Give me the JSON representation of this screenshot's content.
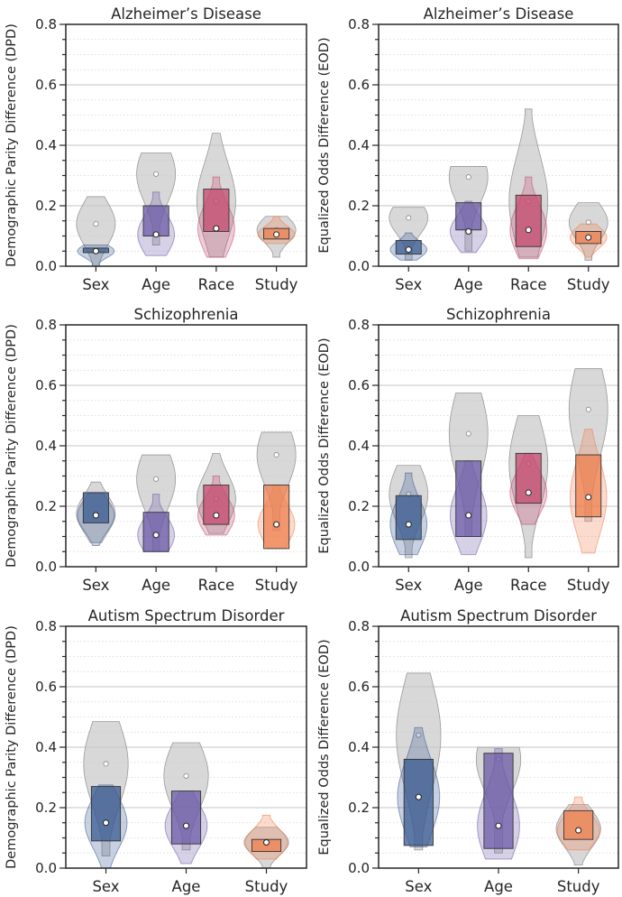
{
  "chart_data": [
    {
      "type": "violin",
      "title": "Alzheimer’s Disease",
      "ylabel": "Demographic Parity Difference (DPD)",
      "ylim": [
        0,
        0.8
      ],
      "yticks": [
        "0.0",
        "0.2",
        "0.4",
        "0.6",
        "0.8"
      ],
      "grid": "horizontal",
      "categories": [
        "Sex",
        "Age",
        "Race",
        "Study"
      ],
      "groups": [
        {
          "name": "Sex",
          "color": "#3b5b92",
          "light": [
            0.0,
            0.23
          ],
          "light_median": 0.14,
          "dark": [
            0.0,
            0.07
          ],
          "iqr": [
            0.045,
            0.06
          ],
          "median": 0.05
        },
        {
          "name": "Age",
          "color": "#6c5ba7",
          "light": [
            0.07,
            0.375
          ],
          "light_median": 0.305,
          "dark": [
            0.035,
            0.245
          ],
          "iqr": [
            0.1,
            0.2
          ],
          "median": 0.105
        },
        {
          "name": "Race",
          "color": "#c5496f",
          "light": [
            0.03,
            0.44
          ],
          "light_median": 0.215,
          "dark": [
            0.03,
            0.295
          ],
          "iqr": [
            0.115,
            0.255
          ],
          "median": 0.125
        },
        {
          "name": "Study",
          "color": "#ef7f4e",
          "light": [
            0.03,
            0.165
          ],
          "light_median": 0.12,
          "dark": [
            0.075,
            0.165
          ],
          "iqr": [
            0.09,
            0.125
          ],
          "median": 0.105
        }
      ]
    },
    {
      "type": "violin",
      "title": "Alzheimer’s Disease",
      "ylabel": "Equalized Odds Difference (EOD)",
      "ylim": [
        0,
        0.8
      ],
      "yticks": [
        "0.0",
        "0.2",
        "0.4",
        "0.6",
        "0.8"
      ],
      "grid": "horizontal",
      "categories": [
        "Sex",
        "Age",
        "Race",
        "Study"
      ],
      "groups": [
        {
          "name": "Sex",
          "color": "#3b5b92",
          "light": [
            0.02,
            0.195
          ],
          "light_median": 0.16,
          "dark": [
            0.02,
            0.11
          ],
          "iqr": [
            0.04,
            0.085
          ],
          "median": 0.055
        },
        {
          "name": "Age",
          "color": "#6c5ba7",
          "light": [
            0.05,
            0.33
          ],
          "light_median": 0.295,
          "dark": [
            0.045,
            0.215
          ],
          "iqr": [
            0.12,
            0.21
          ],
          "median": 0.115
        },
        {
          "name": "Race",
          "color": "#c5496f",
          "light": [
            0.03,
            0.52
          ],
          "light_median": 0.215,
          "dark": [
            0.025,
            0.295
          ],
          "iqr": [
            0.065,
            0.235
          ],
          "median": 0.12
        },
        {
          "name": "Study",
          "color": "#ef7f4e",
          "light": [
            0.02,
            0.21
          ],
          "light_median": 0.145,
          "dark": [
            0.03,
            0.14
          ],
          "iqr": [
            0.075,
            0.115
          ],
          "median": 0.095
        }
      ]
    },
    {
      "type": "violin",
      "title": "Schizophrenia",
      "ylabel": "Demographic Parity Difference (DPD)",
      "ylim": [
        0,
        0.8
      ],
      "yticks": [
        "0.0",
        "0.2",
        "0.4",
        "0.6",
        "0.8"
      ],
      "grid": "horizontal",
      "categories": [
        "Sex",
        "Age",
        "Race",
        "Study"
      ],
      "groups": [
        {
          "name": "Sex",
          "color": "#3b5b92",
          "light": [
            0.08,
            0.28
          ],
          "light_median": 0.175,
          "dark": [
            0.07,
            0.245
          ],
          "iqr": [
            0.145,
            0.245
          ],
          "median": 0.17
        },
        {
          "name": "Age",
          "color": "#6c5ba7",
          "light": [
            0.05,
            0.37
          ],
          "light_median": 0.29,
          "dark": [
            0.05,
            0.24
          ],
          "iqr": [
            0.05,
            0.18
          ],
          "median": 0.105
        },
        {
          "name": "Race",
          "color": "#c5496f",
          "light": [
            0.11,
            0.375
          ],
          "light_median": 0.225,
          "dark": [
            0.105,
            0.3
          ],
          "iqr": [
            0.14,
            0.27
          ],
          "median": 0.17
        },
        {
          "name": "Study",
          "color": "#ef7f4e",
          "light": [
            0.12,
            0.445
          ],
          "light_median": 0.37,
          "dark": [
            0.06,
            0.27
          ],
          "iqr": [
            0.06,
            0.27
          ],
          "median": 0.14
        }
      ]
    },
    {
      "type": "violin",
      "title": "Schizophrenia",
      "ylabel": "Equalized Odds Difference (EOD)",
      "ylim": [
        0,
        0.8
      ],
      "yticks": [
        "0.0",
        "0.2",
        "0.4",
        "0.6",
        "0.8"
      ],
      "grid": "horizontal",
      "categories": [
        "Sex",
        "Age",
        "Race",
        "Study"
      ],
      "groups": [
        {
          "name": "Sex",
          "color": "#3b5b92",
          "light": [
            0.03,
            0.335
          ],
          "light_median": 0.24,
          "dark": [
            0.04,
            0.31
          ],
          "iqr": [
            0.09,
            0.235
          ],
          "median": 0.14
        },
        {
          "name": "Age",
          "color": "#6c5ba7",
          "light": [
            0.1,
            0.575
          ],
          "light_median": 0.44,
          "dark": [
            0.04,
            0.35
          ],
          "iqr": [
            0.1,
            0.35
          ],
          "median": 0.17
        },
        {
          "name": "Race",
          "color": "#c5496f",
          "light": [
            0.03,
            0.5
          ],
          "light_median": 0.34,
          "dark": [
            0.14,
            0.375
          ],
          "iqr": [
            0.21,
            0.375
          ],
          "median": 0.245
        },
        {
          "name": "Study",
          "color": "#ef7f4e",
          "light": [
            0.15,
            0.655
          ],
          "light_median": 0.52,
          "dark": [
            0.045,
            0.455
          ],
          "iqr": [
            0.165,
            0.37
          ],
          "median": 0.23
        }
      ]
    },
    {
      "type": "violin",
      "title": "Autism Spectrum Disorder",
      "ylabel": "Demographic Parity Difference (DPD)",
      "ylim": [
        0,
        0.8
      ],
      "yticks": [
        "0.0",
        "0.2",
        "0.4",
        "0.6",
        "0.8"
      ],
      "grid": "horizontal",
      "categories": [
        "Sex",
        "Age",
        "Study"
      ],
      "groups": [
        {
          "name": "Sex",
          "color": "#3b5b92",
          "light": [
            0.04,
            0.485
          ],
          "light_median": 0.345,
          "dark": [
            0.0,
            0.275
          ],
          "iqr": [
            0.09,
            0.27
          ],
          "median": 0.15
        },
        {
          "name": "Age",
          "color": "#6c5ba7",
          "light": [
            0.06,
            0.415
          ],
          "light_median": 0.305,
          "dark": [
            0.015,
            0.255
          ],
          "iqr": [
            0.08,
            0.255
          ],
          "median": 0.14
        },
        {
          "name": "Study",
          "color": "#ef7f4e",
          "light": [
            0.0,
            0.135
          ],
          "light_median": 0.085,
          "dark": [
            0.03,
            0.175
          ],
          "iqr": [
            0.055,
            0.095
          ],
          "median": 0.085
        }
      ]
    },
    {
      "type": "violin",
      "title": "Autism Spectrum Disorder",
      "ylabel": "Equalized Odds Difference (EOD)",
      "ylim": [
        0,
        0.8
      ],
      "yticks": [
        "0.0",
        "0.2",
        "0.4",
        "0.6",
        "0.8"
      ],
      "grid": "horizontal",
      "categories": [
        "Sex",
        "Age",
        "Study"
      ],
      "groups": [
        {
          "name": "Sex",
          "color": "#3b5b92",
          "light": [
            0.06,
            0.645
          ],
          "light_median": 0.44,
          "dark": [
            0.07,
            0.465
          ],
          "iqr": [
            0.075,
            0.36
          ],
          "median": 0.235
        },
        {
          "name": "Age",
          "color": "#6c5ba7",
          "light": [
            0.05,
            0.4
          ],
          "light_median": 0.36,
          "dark": [
            0.03,
            0.395
          ],
          "iqr": [
            0.065,
            0.38
          ],
          "median": 0.14
        },
        {
          "name": "Study",
          "color": "#ef7f4e",
          "light": [
            0.01,
            0.21
          ],
          "light_median": 0.13,
          "dark": [
            0.06,
            0.235
          ],
          "iqr": [
            0.095,
            0.19
          ],
          "median": 0.125
        }
      ]
    }
  ]
}
